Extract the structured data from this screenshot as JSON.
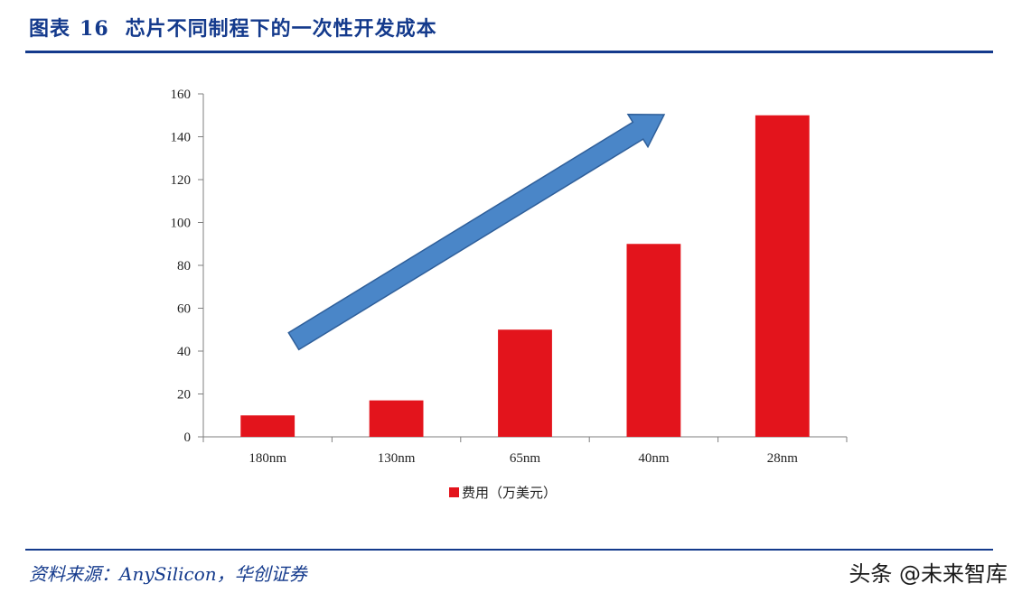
{
  "header": {
    "figure_label": "图表",
    "figure_number": "16",
    "figure_title": "芯片不同制程下的一次性开发成本"
  },
  "footer": {
    "source": "资料来源：AnySilicon，华创证券",
    "watermark": "头条 @未来智库"
  },
  "colors": {
    "accent": "#143a8c",
    "bar": "#e3141c",
    "arrow_fill": "#4a86c8",
    "arrow_stroke": "#2f5f9a"
  },
  "chart_data": {
    "type": "bar",
    "categories": [
      "180nm",
      "130nm",
      "65nm",
      "40nm",
      "28nm"
    ],
    "series": [
      {
        "name": "费用（万美元）",
        "values": [
          10,
          17,
          50,
          90,
          150
        ]
      }
    ],
    "ylim": [
      0,
      160
    ],
    "yticks": [
      0,
      20,
      40,
      60,
      80,
      100,
      120,
      140,
      160
    ],
    "legend_position": "bottom-center",
    "grid": false,
    "annotation": "upward-trend-arrow"
  }
}
